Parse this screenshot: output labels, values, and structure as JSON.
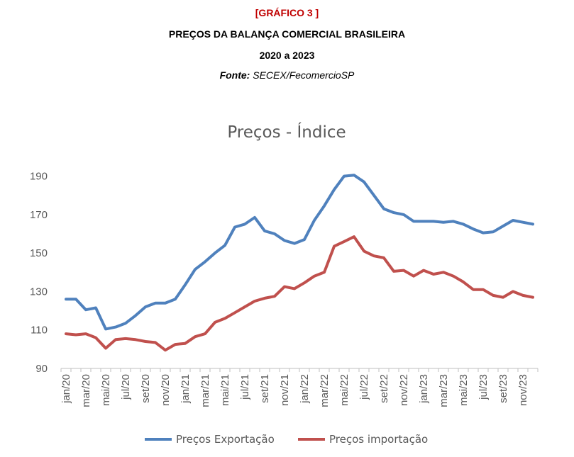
{
  "header": {
    "label": "[GRÁFICO 3 ]",
    "title": "PREÇOS DA BALANÇA COMERCIAL BRASILEIRA",
    "years": "2020 a 2023",
    "source_key": "Fonte:",
    "source_value": "SECEX/FecomercioSP"
  },
  "chart_data": {
    "type": "line",
    "title": "Preços - Índice",
    "xlabel": "",
    "ylabel": "",
    "ylim": [
      90,
      195
    ],
    "yticks": [
      90,
      110,
      130,
      150,
      170,
      190
    ],
    "grid": false,
    "legend": "bottom",
    "x_tick_labels": [
      "jan/20",
      "mar/20",
      "mai/20",
      "jul/20",
      "set/20",
      "nov/20",
      "jan/21",
      "mar/21",
      "mai/21",
      "jul/21",
      "set/21",
      "nov/21",
      "jan/22",
      "mar/22",
      "mai/22",
      "jul/22",
      "set/22",
      "nov/22",
      "jan/23",
      "mar/23",
      "mai/23",
      "jul/23",
      "set/23",
      "nov/23"
    ],
    "x": [
      "jan/20",
      "fev/20",
      "mar/20",
      "abr/20",
      "mai/20",
      "jun/20",
      "jul/20",
      "ago/20",
      "set/20",
      "out/20",
      "nov/20",
      "dez/20",
      "jan/21",
      "fev/21",
      "mar/21",
      "abr/21",
      "mai/21",
      "jun/21",
      "jul/21",
      "ago/21",
      "set/21",
      "out/21",
      "nov/21",
      "dez/21",
      "jan/22",
      "fev/22",
      "mar/22",
      "abr/22",
      "mai/22",
      "jun/22",
      "jul/22",
      "ago/22",
      "set/22",
      "out/22",
      "nov/22",
      "dez/22",
      "jan/23",
      "fev/23",
      "mar/23",
      "abr/23",
      "mai/23",
      "jun/23",
      "jul/23",
      "ago/23",
      "set/23",
      "out/23",
      "nov/23",
      "dez/23"
    ],
    "series": [
      {
        "name": "Preços Exportação",
        "color": "#4f81bd",
        "values": [
          126,
          126,
          120.5,
          121.5,
          110.5,
          111.5,
          113.5,
          117.5,
          122,
          124,
          124,
          126,
          133.5,
          141.5,
          145.5,
          150,
          154,
          163.5,
          165,
          168.5,
          161.5,
          160,
          156.5,
          155,
          157,
          167,
          174.5,
          183,
          190,
          190.5,
          187,
          180,
          173,
          171,
          170,
          166.5,
          166.5,
          166.5,
          166,
          166.5,
          165,
          162.5,
          160.5,
          161,
          164,
          167,
          166,
          165
        ]
      },
      {
        "name": "Preços importação",
        "color": "#c0504d",
        "values": [
          108,
          107.5,
          108,
          106,
          100.5,
          105,
          105.5,
          105,
          104,
          103.5,
          99.5,
          102.5,
          103,
          106.5,
          108,
          114,
          116,
          119,
          122,
          125,
          126.5,
          127.5,
          132.5,
          131.5,
          134.5,
          138,
          140,
          153.5,
          156,
          158.5,
          151,
          148.5,
          147.5,
          140.5,
          141,
          138,
          141,
          139,
          140,
          138,
          135,
          131,
          131,
          128,
          127,
          130,
          128,
          127
        ]
      }
    ]
  }
}
